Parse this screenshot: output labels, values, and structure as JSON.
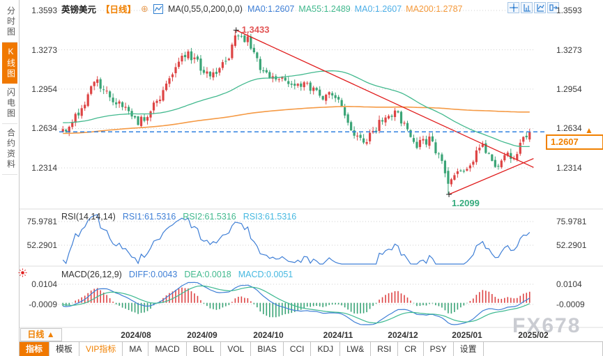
{
  "header": {
    "symbol": "英镑美元",
    "period_tag": "【日线】",
    "add_icon": "⊕",
    "ma_settings": "MA(0,55,0,200,0,0)",
    "ma_values": [
      {
        "label": "MA0:1.2607",
        "color": "#3f7fd6"
      },
      {
        "label": "MA55:1.2489",
        "color": "#42b98e"
      },
      {
        "label": "MA0:1.2607",
        "color": "#4fb0e8"
      },
      {
        "label": "MA200:1.2787",
        "color": "#f59a3c"
      }
    ]
  },
  "sidebar": {
    "items": [
      {
        "label": "分时图",
        "active": false
      },
      {
        "label": "K线图",
        "active": true
      },
      {
        "label": "闪电图",
        "active": false
      },
      {
        "label": "合约资料",
        "active": false
      }
    ]
  },
  "icons": {
    "header_add": "circle-plus-icon",
    "header_chart": "line-chart-icon",
    "tools": [
      "crosshair-icon",
      "axis-scale-icon",
      "axis-scale-alt-icon",
      "collapse-panel-icon"
    ],
    "indicator_shortcut": "red-sun-icon",
    "price_direction": "up-arrow-icon"
  },
  "price_marker": {
    "value": "1.2607",
    "arrow": "▲"
  },
  "annotations": {
    "high": "1.3433",
    "low": "1.2099"
  },
  "rsi": {
    "title": "RSI(14,14,14)",
    "values": [
      {
        "label": "RSI1:61.5316",
        "color": "#3f7fd6"
      },
      {
        "label": "RSI2:61.5316",
        "color": "#42b98e"
      },
      {
        "label": "RSI3:61.5316",
        "color": "#45b8e0"
      }
    ],
    "axis_labels": [
      "75.9781",
      "52.2901"
    ]
  },
  "macd": {
    "title": "MACD(26,12,9)",
    "values": [
      {
        "label": "DIFF:0.0043",
        "color": "#3f7fd6"
      },
      {
        "label": "DEA:0.0018",
        "color": "#42b98e"
      },
      {
        "label": "MACD:0.0051",
        "color": "#45b8e0"
      }
    ],
    "axis_labels": [
      "0.0104",
      "-0.0009"
    ]
  },
  "xaxis": {
    "period_selector": {
      "label": "日线",
      "arrow": "▲"
    },
    "months": [
      "2024/08",
      "2024/09",
      "2024/10",
      "2024/11",
      "2024/12",
      "2025/01",
      "2025/02"
    ]
  },
  "toolbar": {
    "tabs": [
      {
        "label": "指标",
        "style": "active"
      },
      {
        "label": "模板",
        "style": "normal"
      },
      {
        "label": "VIP指标",
        "style": "vip"
      },
      {
        "label": "MA",
        "style": "normal"
      },
      {
        "label": "MACD",
        "style": "normal"
      },
      {
        "label": "BOLL",
        "style": "normal"
      },
      {
        "label": "VOL",
        "style": "normal"
      },
      {
        "label": "BIAS",
        "style": "normal"
      },
      {
        "label": "CCI",
        "style": "normal"
      },
      {
        "label": "KDJ",
        "style": "normal"
      },
      {
        "label": "LW&",
        "style": "normal"
      },
      {
        "label": "RSI",
        "style": "normal"
      },
      {
        "label": "CR",
        "style": "normal"
      },
      {
        "label": "PSY",
        "style": "normal"
      },
      {
        "label": "设置",
        "style": "normal"
      }
    ]
  },
  "watermark": "FX678",
  "colors": {
    "accent": "#f07800",
    "candle_up": "#dd4444",
    "candle_down": "#3aa476",
    "ma55": "#42b98e",
    "ma200": "#f59a45",
    "trendline": "#e01b1b",
    "dashed_price_line": "#2f80df",
    "rsi_line": "#3f7fd6",
    "macd_diff": "#3f7fd6",
    "macd_dea": "#3db990",
    "grid": "#cfcfcf",
    "separator": "#dcdcdc",
    "high_annotation": "#e25555",
    "low_annotation": "#35ab7d"
  },
  "chart_data": {
    "type": "candlestick",
    "symbol": "英镑美元 (GBP/USD)",
    "timeframe": "日线",
    "y_axis_main": [
      1.3593,
      1.3273,
      1.2954,
      1.2634,
      1.2314
    ],
    "x_months": [
      "2024/08",
      "2024/09",
      "2024/10",
      "2024/11",
      "2024/12",
      "2025/01",
      "2025/02"
    ],
    "high_annotation": 1.3433,
    "low_annotation": 1.2099,
    "last_price": 1.2607,
    "dashed_line_price": 1.2607,
    "candle_count": 150,
    "price_path": [
      [
        0.0,
        1.262
      ],
      [
        0.02,
        1.268
      ],
      [
        0.045,
        1.284
      ],
      [
        0.065,
        1.3
      ],
      [
        0.075,
        1.302
      ],
      [
        0.095,
        1.29
      ],
      [
        0.115,
        1.284
      ],
      [
        0.135,
        1.279
      ],
      [
        0.16,
        1.267
      ],
      [
        0.185,
        1.276
      ],
      [
        0.21,
        1.29
      ],
      [
        0.24,
        1.313
      ],
      [
        0.262,
        1.325
      ],
      [
        0.285,
        1.318
      ],
      [
        0.3,
        1.312
      ],
      [
        0.33,
        1.306
      ],
      [
        0.355,
        1.322
      ],
      [
        0.372,
        1.34
      ],
      [
        0.385,
        1.338
      ],
      [
        0.4,
        1.334
      ],
      [
        0.425,
        1.31
      ],
      [
        0.455,
        1.306
      ],
      [
        0.48,
        1.303
      ],
      [
        0.51,
        1.3
      ],
      [
        0.535,
        1.296
      ],
      [
        0.558,
        1.289
      ],
      [
        0.572,
        1.297
      ],
      [
        0.59,
        1.285
      ],
      [
        0.61,
        1.268
      ],
      [
        0.638,
        1.253
      ],
      [
        0.662,
        1.258
      ],
      [
        0.688,
        1.273
      ],
      [
        0.715,
        1.275
      ],
      [
        0.742,
        1.262
      ],
      [
        0.758,
        1.25
      ],
      [
        0.788,
        1.254
      ],
      [
        0.803,
        1.239
      ],
      [
        0.81,
        1.242
      ],
      [
        0.825,
        1.216
      ],
      [
        0.84,
        1.225
      ],
      [
        0.868,
        1.233
      ],
      [
        0.893,
        1.248
      ],
      [
        0.912,
        1.245
      ],
      [
        0.928,
        1.228
      ],
      [
        0.948,
        1.244
      ],
      [
        0.963,
        1.238
      ],
      [
        0.983,
        1.252
      ],
      [
        1.0,
        1.2607
      ]
    ],
    "prehistory_path": [
      [
        0.0,
        1.255
      ],
      [
        0.12,
        1.235
      ],
      [
        0.25,
        1.248
      ],
      [
        0.4,
        1.265
      ],
      [
        0.52,
        1.272
      ],
      [
        0.62,
        1.264
      ],
      [
        0.72,
        1.258
      ],
      [
        0.82,
        1.27
      ],
      [
        0.92,
        1.273
      ],
      [
        1.0,
        1.263
      ]
    ],
    "prehistory_count": 200,
    "ma_lines": {
      "ma55_last": 1.2489,
      "ma200_last": 1.2787,
      "ma55_period": 55,
      "ma200_period": 200
    },
    "specials": {
      "peak_fraction": 0.372,
      "low_fraction": 0.825
    },
    "trendlines": [
      {
        "from": [
          0.372,
          1.3433
        ],
        "to": [
          1.005,
          1.2318
        ]
      },
      {
        "from": [
          0.825,
          1.2099
        ],
        "to": [
          1.005,
          1.239
        ]
      }
    ],
    "rsi_panel": {
      "params": [
        14,
        14,
        14
      ],
      "last": 61.5316,
      "grid": [
        75.9781,
        52.2901
      ]
    },
    "macd_panel": {
      "params": [
        26,
        12,
        9
      ],
      "diff": 0.0043,
      "dea": 0.0018,
      "macd": 0.0051,
      "grid": [
        0.0104,
        -0.0009
      ]
    }
  }
}
